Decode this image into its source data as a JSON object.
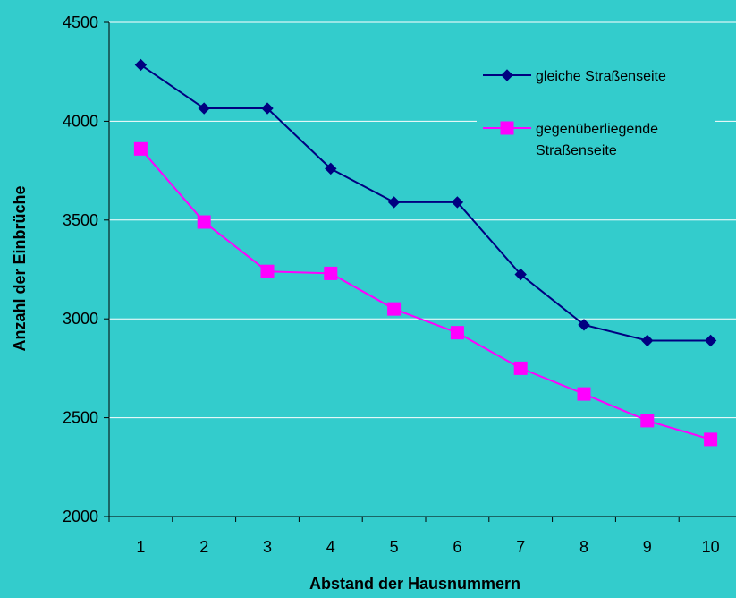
{
  "chart_data": {
    "type": "line",
    "title": "",
    "xlabel": "Abstand der Hausnummern",
    "ylabel": "Anzahl der Einbrüche",
    "categories": [
      "1",
      "2",
      "3",
      "4",
      "5",
      "6",
      "7",
      "8",
      "9",
      "10"
    ],
    "ylim": [
      2000,
      4500
    ],
    "yticks": [
      2000,
      2500,
      3000,
      3500,
      4000,
      4500
    ],
    "grid": true,
    "legend_position": "top-right",
    "series": [
      {
        "name": "gleiche Straßenseite",
        "marker": "diamond",
        "color": "#000080",
        "values": [
          4285,
          4065,
          4065,
          3760,
          3590,
          3590,
          3225,
          2970,
          2890,
          2890
        ]
      },
      {
        "name": "gegenüberliegende Straßenseite",
        "name_lines": [
          "gegenüberliegende",
          "Straßenseite"
        ],
        "marker": "square",
        "color": "#FF00FF",
        "values": [
          3860,
          3490,
          3240,
          3230,
          3050,
          2930,
          2750,
          2620,
          2485,
          2390
        ]
      }
    ]
  },
  "colors": {
    "background": "#33CCCC",
    "gridline": "#FFFFFF",
    "axis": "#000000"
  }
}
